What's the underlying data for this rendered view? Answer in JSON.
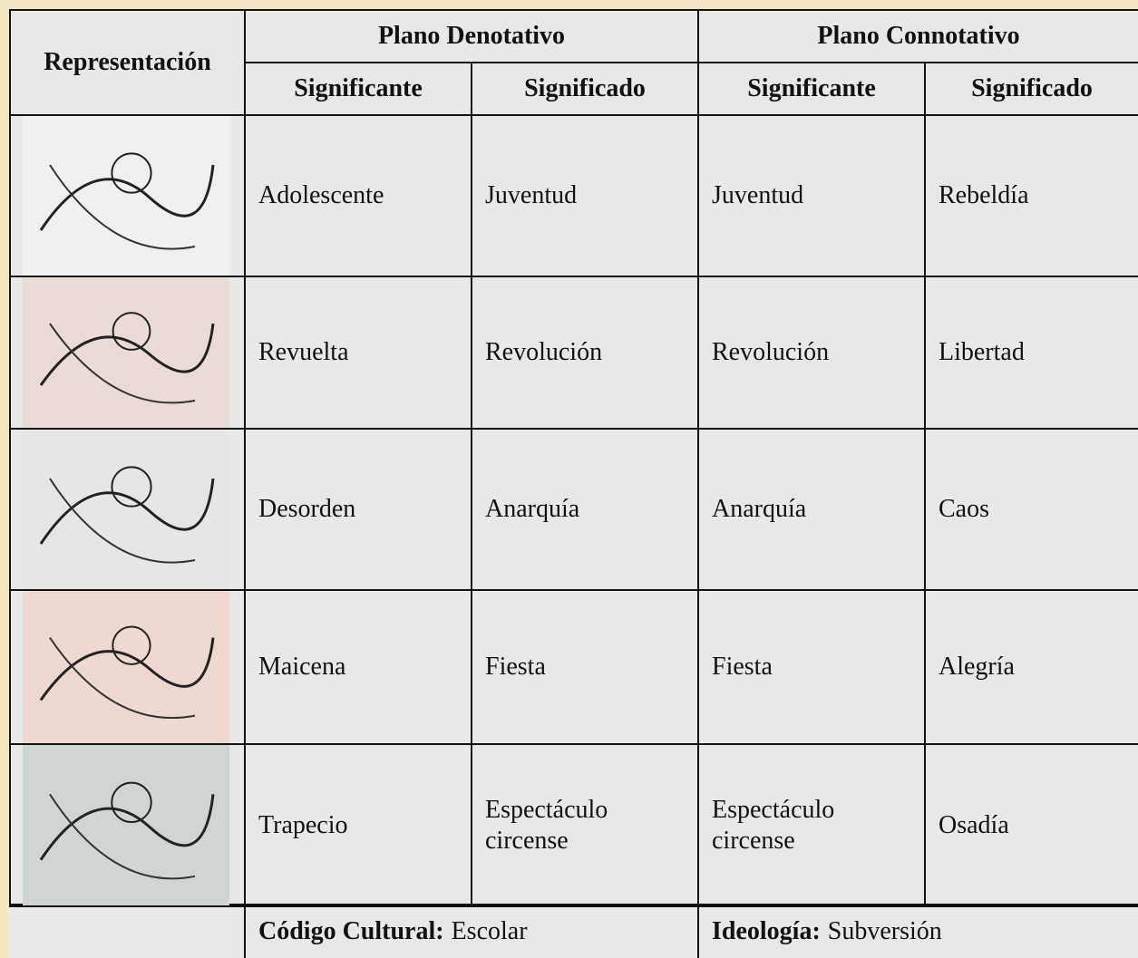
{
  "header": {
    "representation": "Representación",
    "groups": [
      "Plano Denotativo",
      "Plano Connotativo"
    ],
    "subheaders": [
      "Significante",
      "Significado",
      "Significante",
      "Significado"
    ]
  },
  "table": {
    "rows": [
      [
        "Adolescente",
        "Juventud",
        "Juventud",
        "Rebeldía"
      ],
      [
        "Revuelta",
        "Revolución",
        "Revolución",
        "Libertad"
      ],
      [
        "Desorden",
        "Anarquía",
        "Anarquía",
        "Caos"
      ],
      [
        "Maicena",
        "Fiesta",
        "Fiesta",
        "Alegría"
      ],
      [
        "Trapecio",
        "Espectáculo circense",
        "Espectáculo circense",
        "Osadía"
      ]
    ]
  },
  "footer": {
    "cultural_code": {
      "label": "Código Cultural:",
      "value": "Escolar"
    },
    "ideology": {
      "label": "Ideología:",
      "value": "Subversión"
    }
  }
}
